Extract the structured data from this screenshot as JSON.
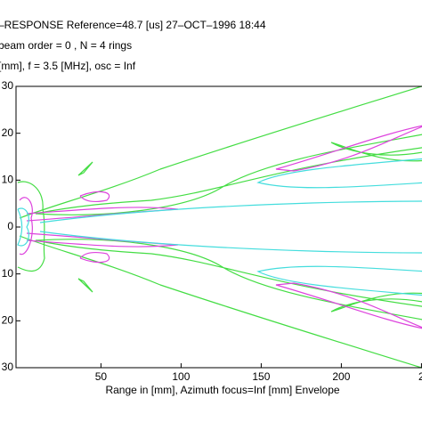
{
  "chart_data": {
    "type": "contour",
    "title_lines": [
      "–RESPONSE   Reference=48.7 [us]   27–OCT–1996 18:44",
      "beam order = 0 , N = 4 rings",
      "[mm], f = 3.5 [MHz],  osc = Inf"
    ],
    "x_label": "Range in [mm], Azimuth focus=Inf [mm]    Envelope",
    "xlim": [
      -3,
      260
    ],
    "xticks": [
      50,
      100,
      150,
      200,
      {
        "value": 250,
        "label": "2"
      }
    ],
    "ylim": [
      -30,
      30
    ],
    "yticks": [
      {
        "value": -30,
        "label": "30"
      },
      {
        "value": -20,
        "label": "20"
      },
      {
        "value": -10,
        "label": "10"
      },
      0,
      10,
      20,
      30
    ],
    "colors": [
      "#44dd44",
      "#dd44dd",
      "#44dddd"
    ]
  }
}
